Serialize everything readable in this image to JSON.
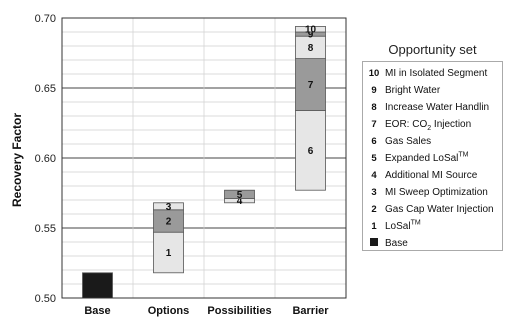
{
  "chart_data": {
    "type": "bar",
    "subtype": "waterfall-stacked",
    "ylabel": "Recovery Factor",
    "ylim": [
      0.5,
      0.7
    ],
    "yticks": [
      "0.50",
      "0.55",
      "0.60",
      "0.65",
      "0.70"
    ],
    "grid": "horizontal",
    "categories": [
      "Base",
      "Options",
      "Possibilities",
      "Barrier"
    ],
    "bars": [
      {
        "category": "Base",
        "segments": [
          {
            "label": "",
            "series": "Base",
            "start": 0.5,
            "end": 0.518,
            "color": "#1a1a1a"
          }
        ]
      },
      {
        "category": "Options",
        "segments": [
          {
            "label": "1",
            "series": "LoSal",
            "start": 0.518,
            "end": 0.547,
            "color": "#e6e6e6"
          },
          {
            "label": "2",
            "series": "Gas Cap Water Injection",
            "start": 0.547,
            "end": 0.563,
            "color": "#9a9a9a"
          },
          {
            "label": "3",
            "series": "MI Sweep Optimization",
            "start": 0.563,
            "end": 0.568,
            "color": "#e6e6e6"
          }
        ]
      },
      {
        "category": "Possibilities",
        "segments": [
          {
            "label": "4",
            "series": "Additional MI Source",
            "start": 0.568,
            "end": 0.571,
            "color": "#e6e6e6"
          },
          {
            "label": "5",
            "series": "Expanded LoSal",
            "start": 0.571,
            "end": 0.577,
            "color": "#9a9a9a"
          }
        ]
      },
      {
        "category": "Barrier",
        "segments": [
          {
            "label": "6",
            "series": "Gas Sales",
            "start": 0.577,
            "end": 0.634,
            "color": "#e6e6e6"
          },
          {
            "label": "7",
            "series": "EOR: CO2 Injection",
            "start": 0.634,
            "end": 0.671,
            "color": "#9a9a9a"
          },
          {
            "label": "8",
            "series": "Increase Water Handling",
            "start": 0.671,
            "end": 0.687,
            "color": "#e6e6e6"
          },
          {
            "label": "9",
            "series": "Bright Water",
            "start": 0.687,
            "end": 0.69,
            "color": "#9a9a9a"
          },
          {
            "label": "10",
            "series": "MI in Isolated Segment",
            "start": 0.69,
            "end": 0.694,
            "color": "#e6e6e6"
          }
        ]
      }
    ]
  },
  "legend": {
    "title": "Opportunity set",
    "items": [
      {
        "num": "10",
        "text": "MI in Isolated Segment"
      },
      {
        "num": "9",
        "text": "Bright Water"
      },
      {
        "num": "8",
        "text": "Increase Water Handlin"
      },
      {
        "num": "7",
        "text": "EOR: CO",
        "sub": "2",
        "after": " Injection"
      },
      {
        "num": "6",
        "text": "Gas Sales"
      },
      {
        "num": "5",
        "text": "Expanded LoSal",
        "sup": "TM"
      },
      {
        "num": "4",
        "text": "Additional MI Source"
      },
      {
        "num": "3",
        "text": "MI Sweep Optimization"
      },
      {
        "num": "2",
        "text": "Gas Cap Water Injection"
      },
      {
        "num": "1",
        "text": "LoSal",
        "sup": "TM"
      },
      {
        "num": "",
        "text": "Base",
        "swatch": "#1a1a1a"
      }
    ]
  }
}
